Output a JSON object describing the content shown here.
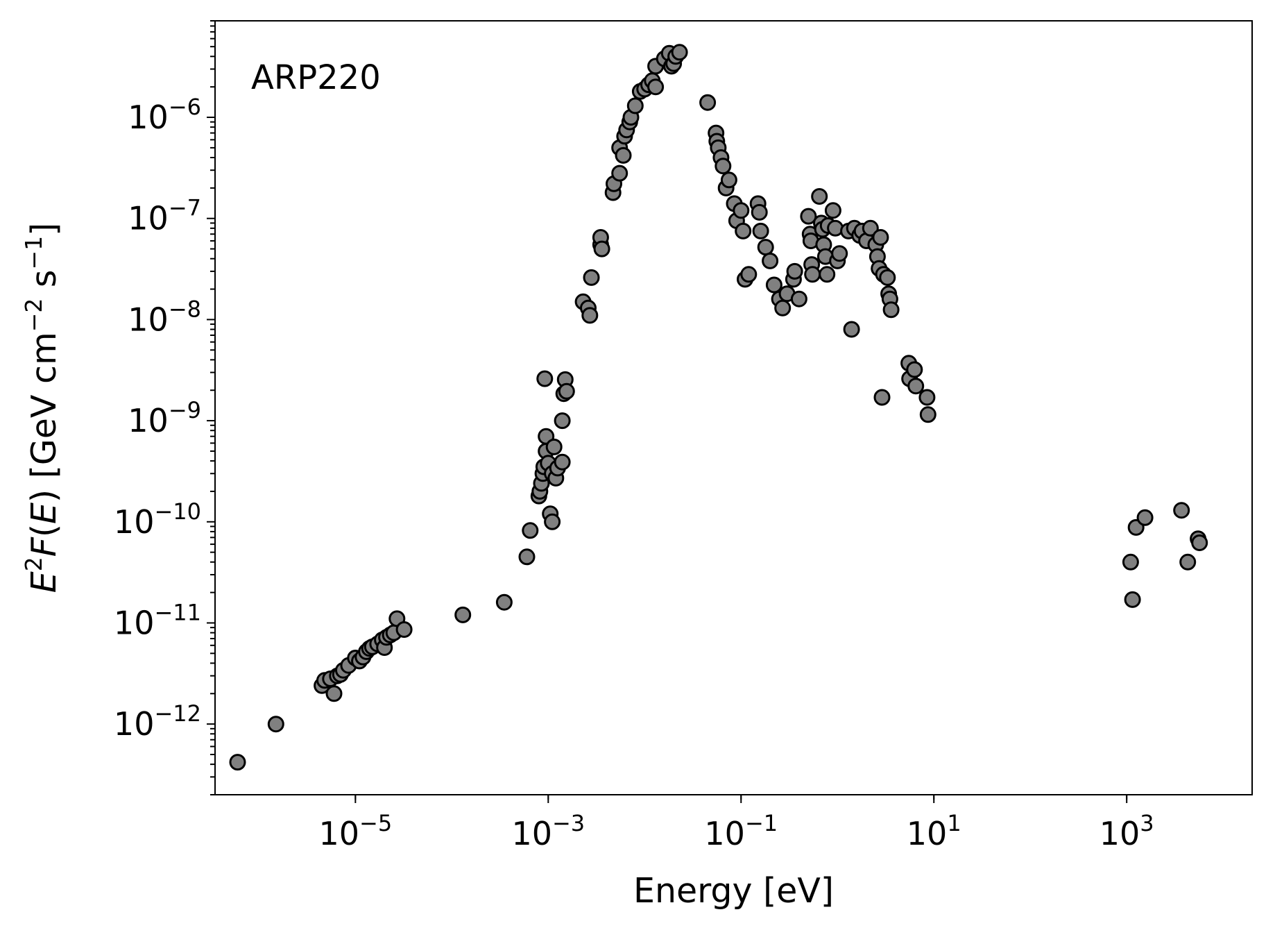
{
  "chart_data": {
    "type": "scatter",
    "title": "",
    "annotation": "ARP220",
    "xlabel": "Energy [eV]",
    "ylabel": "E^2F(E) [GeV cm^-2 s^-1]",
    "xscale": "log",
    "yscale": "log",
    "xlim": [
      3.5e-07,
      20000.0
    ],
    "ylim": [
      2e-13,
      9e-06
    ],
    "grid": false,
    "legend": "none",
    "x_ticks": [
      {
        "value": 1e-05,
        "base": "10",
        "exp": "−5"
      },
      {
        "value": 0.001,
        "base": "10",
        "exp": "−3"
      },
      {
        "value": 0.1,
        "base": "10",
        "exp": "−1"
      },
      {
        "value": 10.0,
        "base": "10",
        "exp": "1"
      },
      {
        "value": 1000.0,
        "base": "10",
        "exp": "3"
      }
    ],
    "y_ticks": [
      {
        "value": 1e-12,
        "base": "10",
        "exp": "−12"
      },
      {
        "value": 1e-11,
        "base": "10",
        "exp": "−11"
      },
      {
        "value": 1e-10,
        "base": "10",
        "exp": "−10"
      },
      {
        "value": 1e-09,
        "base": "10",
        "exp": "−9"
      },
      {
        "value": 1e-08,
        "base": "10",
        "exp": "−8"
      },
      {
        "value": 1e-07,
        "base": "10",
        "exp": "−7"
      },
      {
        "value": 1e-06,
        "base": "10",
        "exp": "−6"
      }
    ],
    "marker": {
      "fill": "#808080",
      "edge": "#000000"
    },
    "series": [
      {
        "points": [
          [
            6e-07,
            4.2e-13
          ],
          [
            1.5e-06,
            1e-12
          ],
          [
            4.5e-06,
            2.4e-12
          ],
          [
            4.8e-06,
            2.7e-12
          ],
          [
            5.5e-06,
            2.8e-12
          ],
          [
            6e-06,
            2e-12
          ],
          [
            6.5e-06,
            3e-12
          ],
          [
            7e-06,
            3.1e-12
          ],
          [
            7.5e-06,
            3.4e-12
          ],
          [
            8.5e-06,
            3.8e-12
          ],
          [
            1e-05,
            4.5e-12
          ],
          [
            1.1e-05,
            4.2e-12
          ],
          [
            1.2e-05,
            4.6e-12
          ],
          [
            1.3e-05,
            5.2e-12
          ],
          [
            1.4e-05,
            5.6e-12
          ],
          [
            1.5e-05,
            5.8e-12
          ],
          [
            1.7e-05,
            6.2e-12
          ],
          [
            1.9e-05,
            6.8e-12
          ],
          [
            2e-05,
            5.7e-12
          ],
          [
            2.1e-05,
            7.2e-12
          ],
          [
            2.3e-05,
            7.6e-12
          ],
          [
            2.5e-05,
            8e-12
          ],
          [
            2.7e-05,
            1.1e-11
          ],
          [
            3.2e-05,
            8.6e-12
          ],
          [
            0.00013,
            1.2e-11
          ],
          [
            0.00035,
            1.6e-11
          ],
          [
            0.0006,
            4.5e-11
          ],
          [
            0.00065,
            8.2e-11
          ],
          [
            0.0008,
            1.8e-10
          ],
          [
            0.00082,
            2e-10
          ],
          [
            0.00085,
            2.4e-10
          ],
          [
            0.00088,
            3e-10
          ],
          [
            0.0009,
            3.5e-10
          ],
          [
            0.00092,
            2.6e-09
          ],
          [
            0.00095,
            7e-10
          ],
          [
            0.00095,
            5e-10
          ],
          [
            0.001,
            3.8e-10
          ],
          [
            0.00105,
            1.2e-10
          ],
          [
            0.0011,
            1e-10
          ],
          [
            0.0011,
            3e-10
          ],
          [
            0.00115,
            5.5e-10
          ],
          [
            0.0012,
            2.7e-10
          ],
          [
            0.00125,
            3.4e-10
          ],
          [
            0.0014,
            3.9e-10
          ],
          [
            0.0014,
            1e-09
          ],
          [
            0.00145,
            1.85e-09
          ],
          [
            0.0015,
            2.55e-09
          ],
          [
            0.00155,
            1.95e-09
          ],
          [
            0.0023,
            1.5e-08
          ],
          [
            0.0026,
            1.3e-08
          ],
          [
            0.0027,
            1.1e-08
          ],
          [
            0.0028,
            2.6e-08
          ],
          [
            0.0035,
            5.5e-08
          ],
          [
            0.0035,
            6.5e-08
          ],
          [
            0.0036,
            5e-08
          ],
          [
            0.0047,
            1.8e-07
          ],
          [
            0.0048,
            2.2e-07
          ],
          [
            0.0055,
            2.8e-07
          ],
          [
            0.0055,
            5e-07
          ],
          [
            0.006,
            4.2e-07
          ],
          [
            0.0062,
            6.5e-07
          ],
          [
            0.0065,
            7.5e-07
          ],
          [
            0.007,
            9e-07
          ],
          [
            0.0072,
            1e-06
          ],
          [
            0.008,
            1.3e-06
          ],
          [
            0.009,
            1.8e-06
          ],
          [
            0.01,
            1.9e-06
          ],
          [
            0.011,
            2.1e-06
          ],
          [
            0.012,
            2.3e-06
          ],
          [
            0.013,
            3.2e-06
          ],
          [
            0.013,
            2e-06
          ],
          [
            0.016,
            3.8e-06
          ],
          [
            0.018,
            4.3e-06
          ],
          [
            0.019,
            3.2e-06
          ],
          [
            0.02,
            3.4e-06
          ],
          [
            0.021,
            4e-06
          ],
          [
            0.023,
            4.4e-06
          ],
          [
            0.045,
            1.4e-06
          ],
          [
            0.055,
            7e-07
          ],
          [
            0.056,
            5.8e-07
          ],
          [
            0.058,
            5e-07
          ],
          [
            0.062,
            4e-07
          ],
          [
            0.065,
            3.3e-07
          ],
          [
            0.07,
            2e-07
          ],
          [
            0.075,
            2.4e-07
          ],
          [
            0.085,
            1.4e-07
          ],
          [
            0.09,
            9.5e-08
          ],
          [
            0.1,
            1.2e-07
          ],
          [
            0.105,
            7.5e-08
          ],
          [
            0.11,
            2.5e-08
          ],
          [
            0.12,
            2.8e-08
          ],
          [
            0.15,
            1.4e-07
          ],
          [
            0.155,
            1.15e-07
          ],
          [
            0.16,
            7.5e-08
          ],
          [
            0.18,
            5.2e-08
          ],
          [
            0.2,
            3.8e-08
          ],
          [
            0.22,
            2.2e-08
          ],
          [
            0.25,
            1.6e-08
          ],
          [
            0.27,
            1.3e-08
          ],
          [
            0.3,
            1.8e-08
          ],
          [
            0.35,
            2.5e-08
          ],
          [
            0.36,
            3e-08
          ],
          [
            0.4,
            1.6e-08
          ],
          [
            0.5,
            1.05e-07
          ],
          [
            0.52,
            7e-08
          ],
          [
            0.53,
            6e-08
          ],
          [
            0.54,
            3.5e-08
          ],
          [
            0.55,
            2.8e-08
          ],
          [
            0.65,
            1.65e-07
          ],
          [
            0.68,
            9e-08
          ],
          [
            0.7,
            7.8e-08
          ],
          [
            0.72,
            5.5e-08
          ],
          [
            0.75,
            4.2e-08
          ],
          [
            0.78,
            2.8e-08
          ],
          [
            0.8,
            8.5e-08
          ],
          [
            0.9,
            1.2e-07
          ],
          [
            0.95,
            8e-08
          ],
          [
            1.0,
            3.8e-08
          ],
          [
            1.05,
            4.5e-08
          ],
          [
            1.3,
            7.5e-08
          ],
          [
            1.4,
            8e-09
          ],
          [
            1.5,
            8e-08
          ],
          [
            1.7,
            6.8e-08
          ],
          [
            1.8,
            7.5e-08
          ],
          [
            2.0,
            6e-08
          ],
          [
            2.2,
            8e-08
          ],
          [
            2.5,
            5.5e-08
          ],
          [
            2.6,
            4.2e-08
          ],
          [
            2.7,
            3.2e-08
          ],
          [
            2.8,
            6.5e-08
          ],
          [
            2.9,
            1.7e-09
          ],
          [
            3.0,
            2.8e-08
          ],
          [
            3.3,
            2.6e-08
          ],
          [
            3.4,
            1.8e-08
          ],
          [
            3.5,
            1.6e-08
          ],
          [
            3.6,
            1.25e-08
          ],
          [
            5.5,
            3.7e-09
          ],
          [
            5.6,
            2.6e-09
          ],
          [
            6.3,
            3.2e-09
          ],
          [
            6.5,
            2.2e-09
          ],
          [
            8.5,
            1.7e-09
          ],
          [
            8.7,
            1.15e-09
          ],
          [
            1100,
            4e-11
          ],
          [
            1150,
            1.7e-11
          ],
          [
            1250,
            8.8e-11
          ],
          [
            1550,
            1.1e-10
          ],
          [
            3700,
            1.3e-10
          ],
          [
            4300,
            4e-11
          ],
          [
            5500,
            6.8e-11
          ],
          [
            5700,
            6.2e-11
          ]
        ]
      }
    ]
  }
}
